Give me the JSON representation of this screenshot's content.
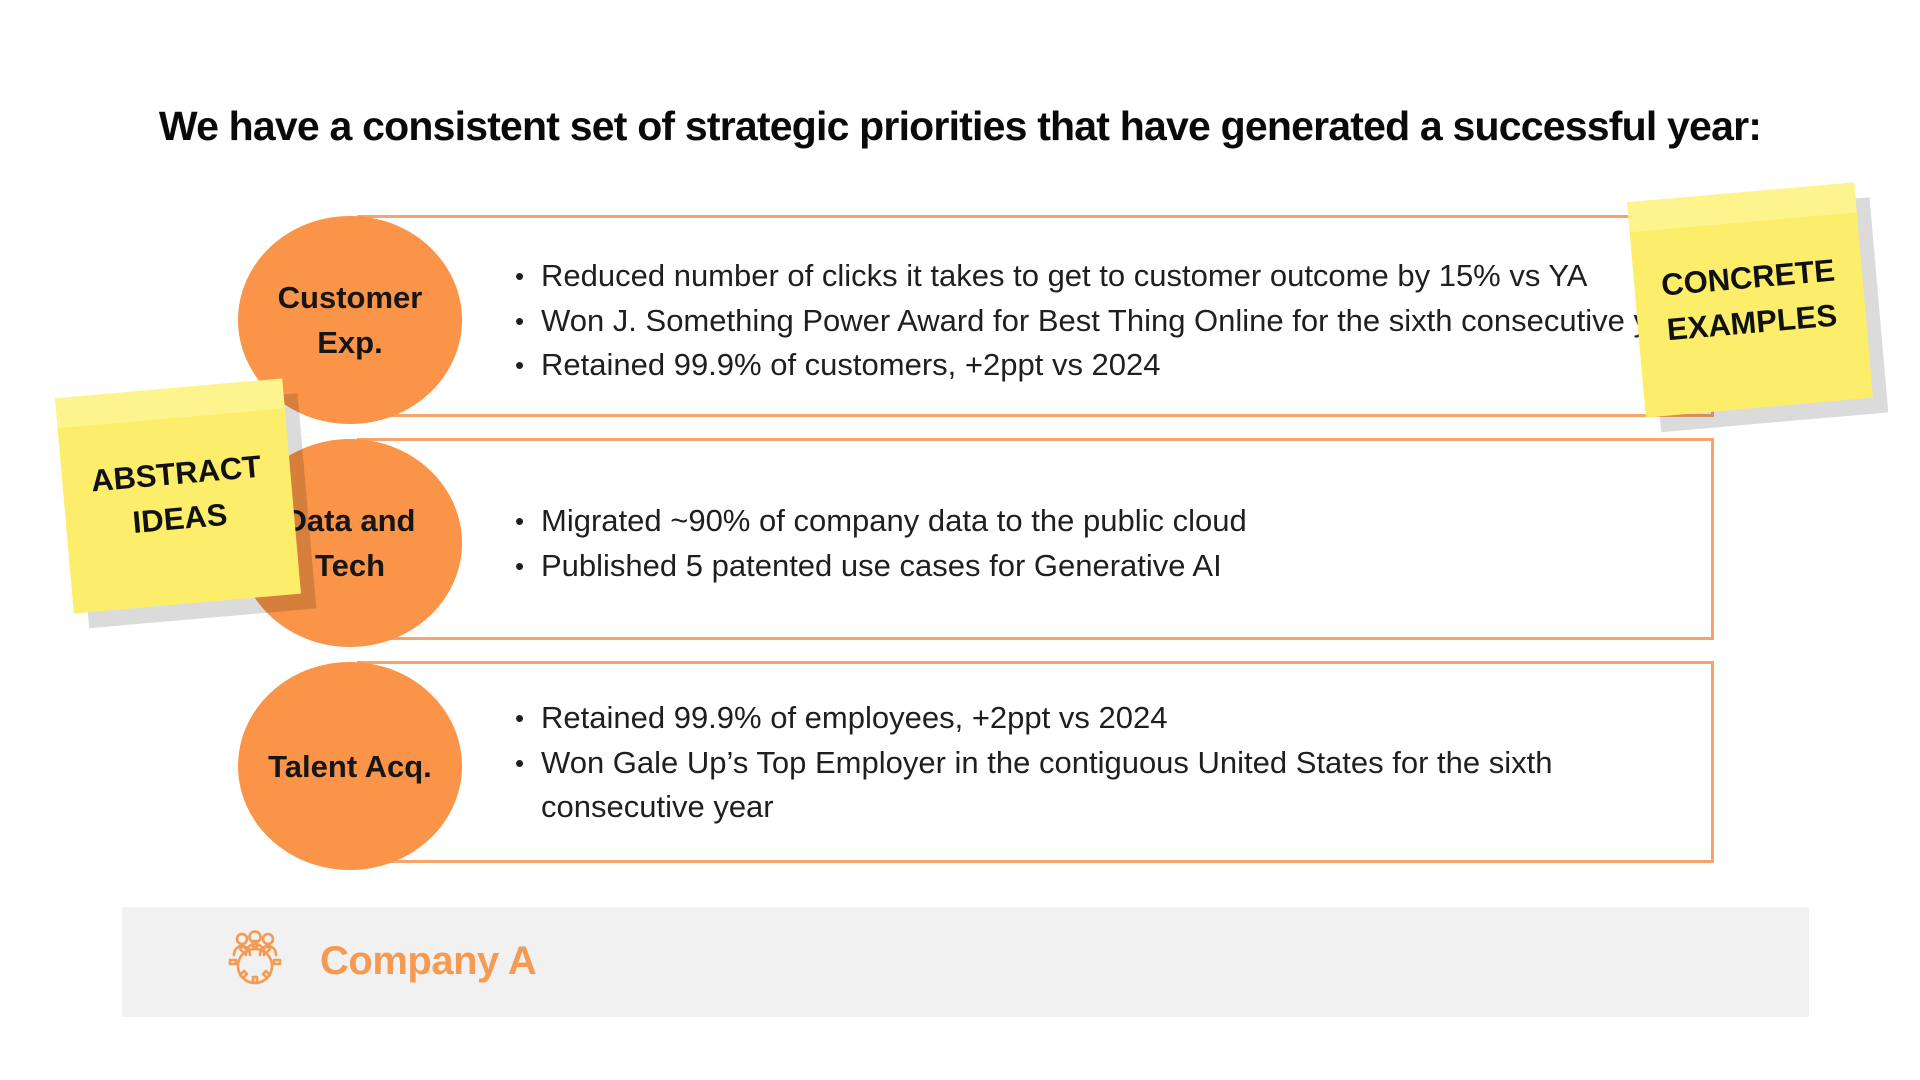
{
  "slide": {
    "title": "We have a consistent set of strategic priorities that have generated a successful year:"
  },
  "colors": {
    "accent_orange": "#fa9448",
    "box_border": "#f6a36c",
    "sticky_yellow": "#fcee6a",
    "footer_bg": "#f1f1f1",
    "company_text": "#f59a52"
  },
  "priorities": [
    {
      "label_line1": "Customer",
      "label_line2": "Exp.",
      "bullets": [
        "Reduced number of clicks it takes to get to customer outcome by 15% vs YA",
        "Won J. Something Power Award for Best Thing Online for the sixth consecutive year",
        "Retained 99.9% of customers, +2ppt vs 2024"
      ]
    },
    {
      "label_line1": "Data and",
      "label_line2": "Tech",
      "bullets": [
        "Migrated ~90% of company data to the public cloud",
        "Published 5 patented use cases for Generative AI"
      ]
    },
    {
      "label_line1": "Talent Acq.",
      "bullets": [
        "Retained 99.9% of employees, +2ppt vs 2024",
        "Won Gale Up’s Top Employer in the contiguous United States for the sixth consecutive year"
      ]
    }
  ],
  "stickies": {
    "abstract": {
      "line1": "ABSTRACT",
      "line2": "IDEAS"
    },
    "concrete": {
      "line1": "CONCRETE",
      "line2": "EXAMPLES"
    }
  },
  "footer": {
    "company_name": "Company A",
    "logo_icon": "team-gear-icon"
  }
}
